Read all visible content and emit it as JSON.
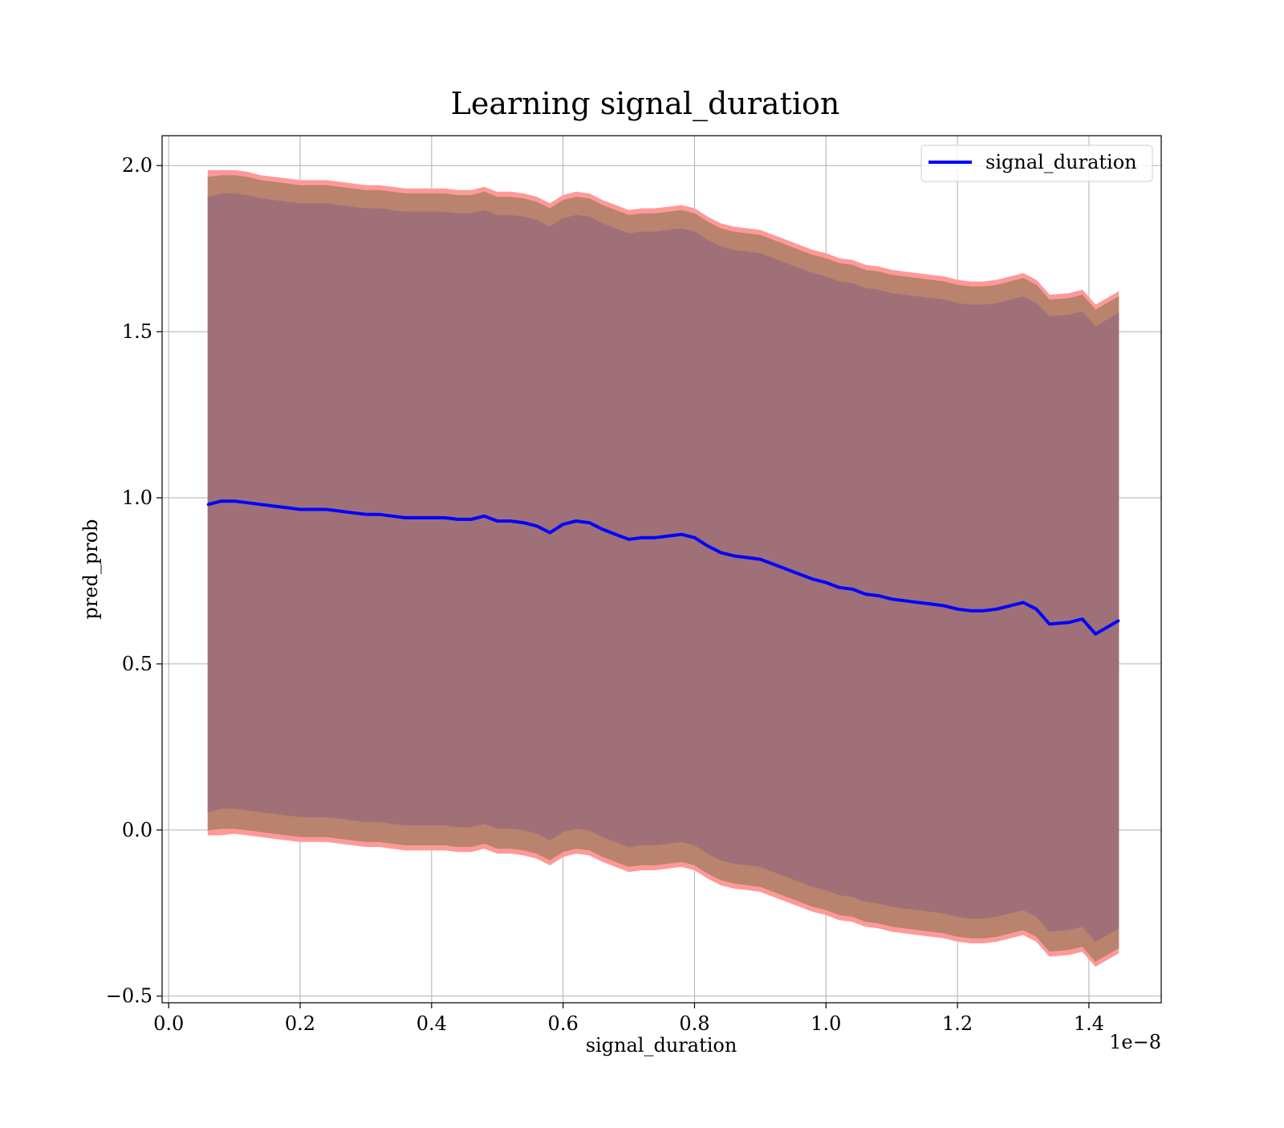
{
  "chart_data": {
    "type": "area",
    "title": "Learning signal_duration",
    "xlabel": "signal_duration",
    "ylabel": "pred_prob",
    "x_offset_text": "1e−8",
    "xlim": [
      -0.01,
      1.51
    ],
    "ylim": [
      -0.52,
      2.09
    ],
    "x_ticks": [
      0.0,
      0.2,
      0.4,
      0.6,
      0.8,
      1.0,
      1.2,
      1.4
    ],
    "x_tick_labels": [
      "0.0",
      "0.2",
      "0.4",
      "0.6",
      "0.8",
      "1.0",
      "1.2",
      "1.4"
    ],
    "y_ticks": [
      -0.5,
      0.0,
      0.5,
      1.0,
      1.5,
      2.0
    ],
    "y_tick_labels": [
      "−0.5",
      "0.0",
      "0.5",
      "1.0",
      "1.5",
      "2.0"
    ],
    "grid": true,
    "legend_position": "top-right",
    "series": [
      {
        "name": "signal_duration",
        "color": "#0000ff",
        "x": [
          0.06,
          0.08,
          0.1,
          0.12,
          0.14,
          0.16,
          0.18,
          0.2,
          0.22,
          0.24,
          0.26,
          0.28,
          0.3,
          0.32,
          0.34,
          0.36,
          0.38,
          0.4,
          0.42,
          0.44,
          0.46,
          0.48,
          0.5,
          0.52,
          0.54,
          0.56,
          0.58,
          0.6,
          0.62,
          0.64,
          0.66,
          0.68,
          0.7,
          0.72,
          0.74,
          0.76,
          0.78,
          0.8,
          0.82,
          0.84,
          0.86,
          0.88,
          0.9,
          0.92,
          0.94,
          0.96,
          0.98,
          1.0,
          1.02,
          1.04,
          1.06,
          1.08,
          1.1,
          1.12,
          1.14,
          1.16,
          1.18,
          1.2,
          1.22,
          1.24,
          1.26,
          1.28,
          1.3,
          1.32,
          1.34,
          1.37,
          1.39,
          1.41,
          1.445
        ],
        "y": [
          0.98,
          0.99,
          0.99,
          0.985,
          0.98,
          0.975,
          0.97,
          0.965,
          0.965,
          0.965,
          0.96,
          0.955,
          0.95,
          0.95,
          0.945,
          0.94,
          0.94,
          0.94,
          0.94,
          0.935,
          0.935,
          0.945,
          0.93,
          0.93,
          0.925,
          0.915,
          0.895,
          0.92,
          0.93,
          0.925,
          0.905,
          0.89,
          0.875,
          0.88,
          0.88,
          0.885,
          0.89,
          0.88,
          0.855,
          0.835,
          0.825,
          0.82,
          0.815,
          0.8,
          0.785,
          0.77,
          0.755,
          0.745,
          0.73,
          0.725,
          0.71,
          0.705,
          0.695,
          0.69,
          0.685,
          0.68,
          0.675,
          0.665,
          0.66,
          0.66,
          0.665,
          0.675,
          0.685,
          0.665,
          0.62,
          0.625,
          0.635,
          0.59,
          0.63
        ]
      }
    ],
    "bands": [
      {
        "color": "#ff9999",
        "upper": [
          1.985,
          1.985,
          1.985,
          1.98,
          1.97,
          1.965,
          1.96,
          1.955,
          1.955,
          1.955,
          1.95,
          1.945,
          1.94,
          1.94,
          1.935,
          1.93,
          1.93,
          1.93,
          1.93,
          1.925,
          1.925,
          1.935,
          1.92,
          1.92,
          1.915,
          1.905,
          1.885,
          1.91,
          1.92,
          1.915,
          1.895,
          1.88,
          1.865,
          1.87,
          1.87,
          1.875,
          1.88,
          1.87,
          1.845,
          1.825,
          1.815,
          1.81,
          1.805,
          1.79,
          1.775,
          1.76,
          1.745,
          1.735,
          1.72,
          1.715,
          1.7,
          1.695,
          1.685,
          1.68,
          1.675,
          1.67,
          1.665,
          1.655,
          1.65,
          1.65,
          1.655,
          1.665,
          1.675,
          1.655,
          1.61,
          1.615,
          1.625,
          1.58,
          1.62
        ],
        "lower": [
          -0.015,
          -0.015,
          -0.01,
          -0.015,
          -0.02,
          -0.025,
          -0.03,
          -0.035,
          -0.035,
          -0.035,
          -0.04,
          -0.045,
          -0.05,
          -0.05,
          -0.055,
          -0.06,
          -0.06,
          -0.06,
          -0.06,
          -0.065,
          -0.065,
          -0.055,
          -0.07,
          -0.07,
          -0.075,
          -0.085,
          -0.105,
          -0.08,
          -0.07,
          -0.075,
          -0.095,
          -0.11,
          -0.125,
          -0.12,
          -0.12,
          -0.115,
          -0.11,
          -0.12,
          -0.145,
          -0.165,
          -0.175,
          -0.18,
          -0.185,
          -0.2,
          -0.215,
          -0.23,
          -0.245,
          -0.255,
          -0.27,
          -0.275,
          -0.29,
          -0.295,
          -0.305,
          -0.31,
          -0.315,
          -0.32,
          -0.325,
          -0.335,
          -0.34,
          -0.34,
          -0.335,
          -0.325,
          -0.315,
          -0.335,
          -0.38,
          -0.375,
          -0.365,
          -0.41,
          -0.37
        ]
      },
      {
        "color": "#b9836e",
        "upper": [
          1.965,
          1.97,
          1.97,
          1.965,
          1.955,
          1.95,
          1.945,
          1.94,
          1.94,
          1.94,
          1.935,
          1.93,
          1.925,
          1.925,
          1.92,
          1.915,
          1.915,
          1.915,
          1.915,
          1.91,
          1.91,
          1.92,
          1.905,
          1.905,
          1.9,
          1.89,
          1.87,
          1.895,
          1.905,
          1.9,
          1.88,
          1.865,
          1.85,
          1.855,
          1.855,
          1.86,
          1.865,
          1.855,
          1.83,
          1.81,
          1.8,
          1.795,
          1.79,
          1.775,
          1.76,
          1.745,
          1.73,
          1.72,
          1.705,
          1.7,
          1.685,
          1.68,
          1.67,
          1.665,
          1.66,
          1.655,
          1.65,
          1.64,
          1.635,
          1.635,
          1.64,
          1.65,
          1.66,
          1.64,
          1.595,
          1.6,
          1.61,
          1.565,
          1.605
        ],
        "lower": [
          0.0,
          0.005,
          0.005,
          0.0,
          -0.005,
          -0.01,
          -0.015,
          -0.02,
          -0.02,
          -0.02,
          -0.025,
          -0.03,
          -0.035,
          -0.035,
          -0.04,
          -0.045,
          -0.045,
          -0.045,
          -0.045,
          -0.05,
          -0.05,
          -0.04,
          -0.055,
          -0.055,
          -0.06,
          -0.07,
          -0.09,
          -0.065,
          -0.055,
          -0.06,
          -0.08,
          -0.095,
          -0.11,
          -0.105,
          -0.105,
          -0.1,
          -0.095,
          -0.105,
          -0.13,
          -0.15,
          -0.16,
          -0.165,
          -0.17,
          -0.185,
          -0.2,
          -0.215,
          -0.23,
          -0.24,
          -0.255,
          -0.26,
          -0.275,
          -0.28,
          -0.29,
          -0.295,
          -0.3,
          -0.305,
          -0.31,
          -0.32,
          -0.325,
          -0.325,
          -0.32,
          -0.31,
          -0.3,
          -0.32,
          -0.365,
          -0.36,
          -0.35,
          -0.395,
          -0.355
        ]
      },
      {
        "color": "#a07078",
        "upper": [
          1.905,
          1.915,
          1.915,
          1.91,
          1.9,
          1.895,
          1.89,
          1.885,
          1.885,
          1.885,
          1.88,
          1.875,
          1.87,
          1.87,
          1.865,
          1.86,
          1.86,
          1.86,
          1.86,
          1.855,
          1.855,
          1.865,
          1.85,
          1.85,
          1.845,
          1.835,
          1.815,
          1.84,
          1.85,
          1.845,
          1.825,
          1.81,
          1.795,
          1.8,
          1.8,
          1.805,
          1.81,
          1.8,
          1.775,
          1.755,
          1.745,
          1.74,
          1.735,
          1.72,
          1.705,
          1.69,
          1.675,
          1.665,
          1.65,
          1.645,
          1.63,
          1.625,
          1.615,
          1.61,
          1.605,
          1.6,
          1.595,
          1.585,
          1.58,
          1.58,
          1.585,
          1.595,
          1.605,
          1.585,
          1.545,
          1.55,
          1.56,
          1.515,
          1.555
        ],
        "lower": [
          0.055,
          0.065,
          0.065,
          0.06,
          0.055,
          0.05,
          0.045,
          0.04,
          0.04,
          0.04,
          0.035,
          0.03,
          0.025,
          0.025,
          0.02,
          0.015,
          0.015,
          0.015,
          0.015,
          0.01,
          0.01,
          0.02,
          0.005,
          0.005,
          0.0,
          -0.01,
          -0.03,
          -0.005,
          0.005,
          0.0,
          -0.02,
          -0.035,
          -0.05,
          -0.045,
          -0.045,
          -0.04,
          -0.035,
          -0.045,
          -0.07,
          -0.09,
          -0.1,
          -0.105,
          -0.11,
          -0.125,
          -0.14,
          -0.155,
          -0.17,
          -0.18,
          -0.195,
          -0.2,
          -0.215,
          -0.22,
          -0.23,
          -0.235,
          -0.24,
          -0.245,
          -0.25,
          -0.26,
          -0.265,
          -0.265,
          -0.26,
          -0.25,
          -0.24,
          -0.26,
          -0.305,
          -0.3,
          -0.29,
          -0.335,
          -0.295
        ]
      }
    ]
  }
}
